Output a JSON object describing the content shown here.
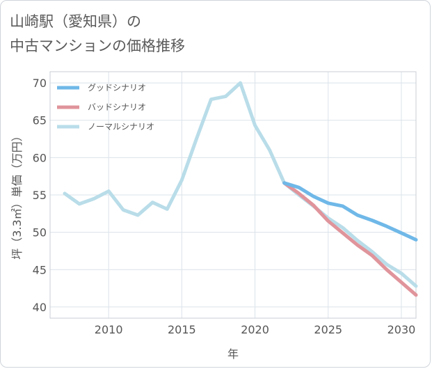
{
  "title_line1": "山崎駅（愛知県）の",
  "title_line2": "中古マンションの価格推移",
  "chart_data": {
    "type": "line",
    "xlabel": "年",
    "ylabel": "坪（3.3㎡）単価（万円）",
    "xlim": [
      2006,
      2031
    ],
    "ylim": [
      38.5,
      71.5
    ],
    "xticks": [
      2010,
      2015,
      2020,
      2025,
      2030
    ],
    "yticks": [
      40,
      45,
      50,
      55,
      60,
      65,
      70
    ],
    "grid": true,
    "legend_position": "top-left",
    "series": [
      {
        "name": "グッドシナリオ",
        "color": "#6fb8e8",
        "x": [
          2022,
          2023,
          2024,
          2025,
          2026,
          2027,
          2028,
          2029,
          2030,
          2031
        ],
        "values": [
          56.6,
          56.0,
          54.8,
          53.9,
          53.5,
          52.3,
          51.6,
          50.8,
          49.9,
          49.0
        ]
      },
      {
        "name": "バッドシナリオ",
        "color": "#e0949b",
        "x": [
          2022,
          2023,
          2024,
          2025,
          2026,
          2027,
          2028,
          2029,
          2030,
          2031
        ],
        "values": [
          56.6,
          55.2,
          53.6,
          51.5,
          49.9,
          48.3,
          46.9,
          45.0,
          43.3,
          41.6
        ]
      },
      {
        "name": "ノーマルシナリオ",
        "color": "#b9dde9",
        "x": [
          2007,
          2008,
          2009,
          2010,
          2011,
          2012,
          2013,
          2014,
          2015,
          2016,
          2017,
          2018,
          2019,
          2020,
          2021,
          2022,
          2023,
          2024,
          2025,
          2026,
          2027,
          2028,
          2029,
          2030,
          2031
        ],
        "values": [
          55.2,
          53.8,
          54.5,
          55.5,
          53.0,
          52.3,
          54.0,
          53.1,
          57.0,
          62.5,
          67.8,
          68.2,
          70.0,
          64.3,
          61.0,
          56.6,
          55.0,
          53.5,
          51.9,
          50.6,
          48.9,
          47.4,
          45.7,
          44.5,
          42.8
        ]
      }
    ]
  }
}
